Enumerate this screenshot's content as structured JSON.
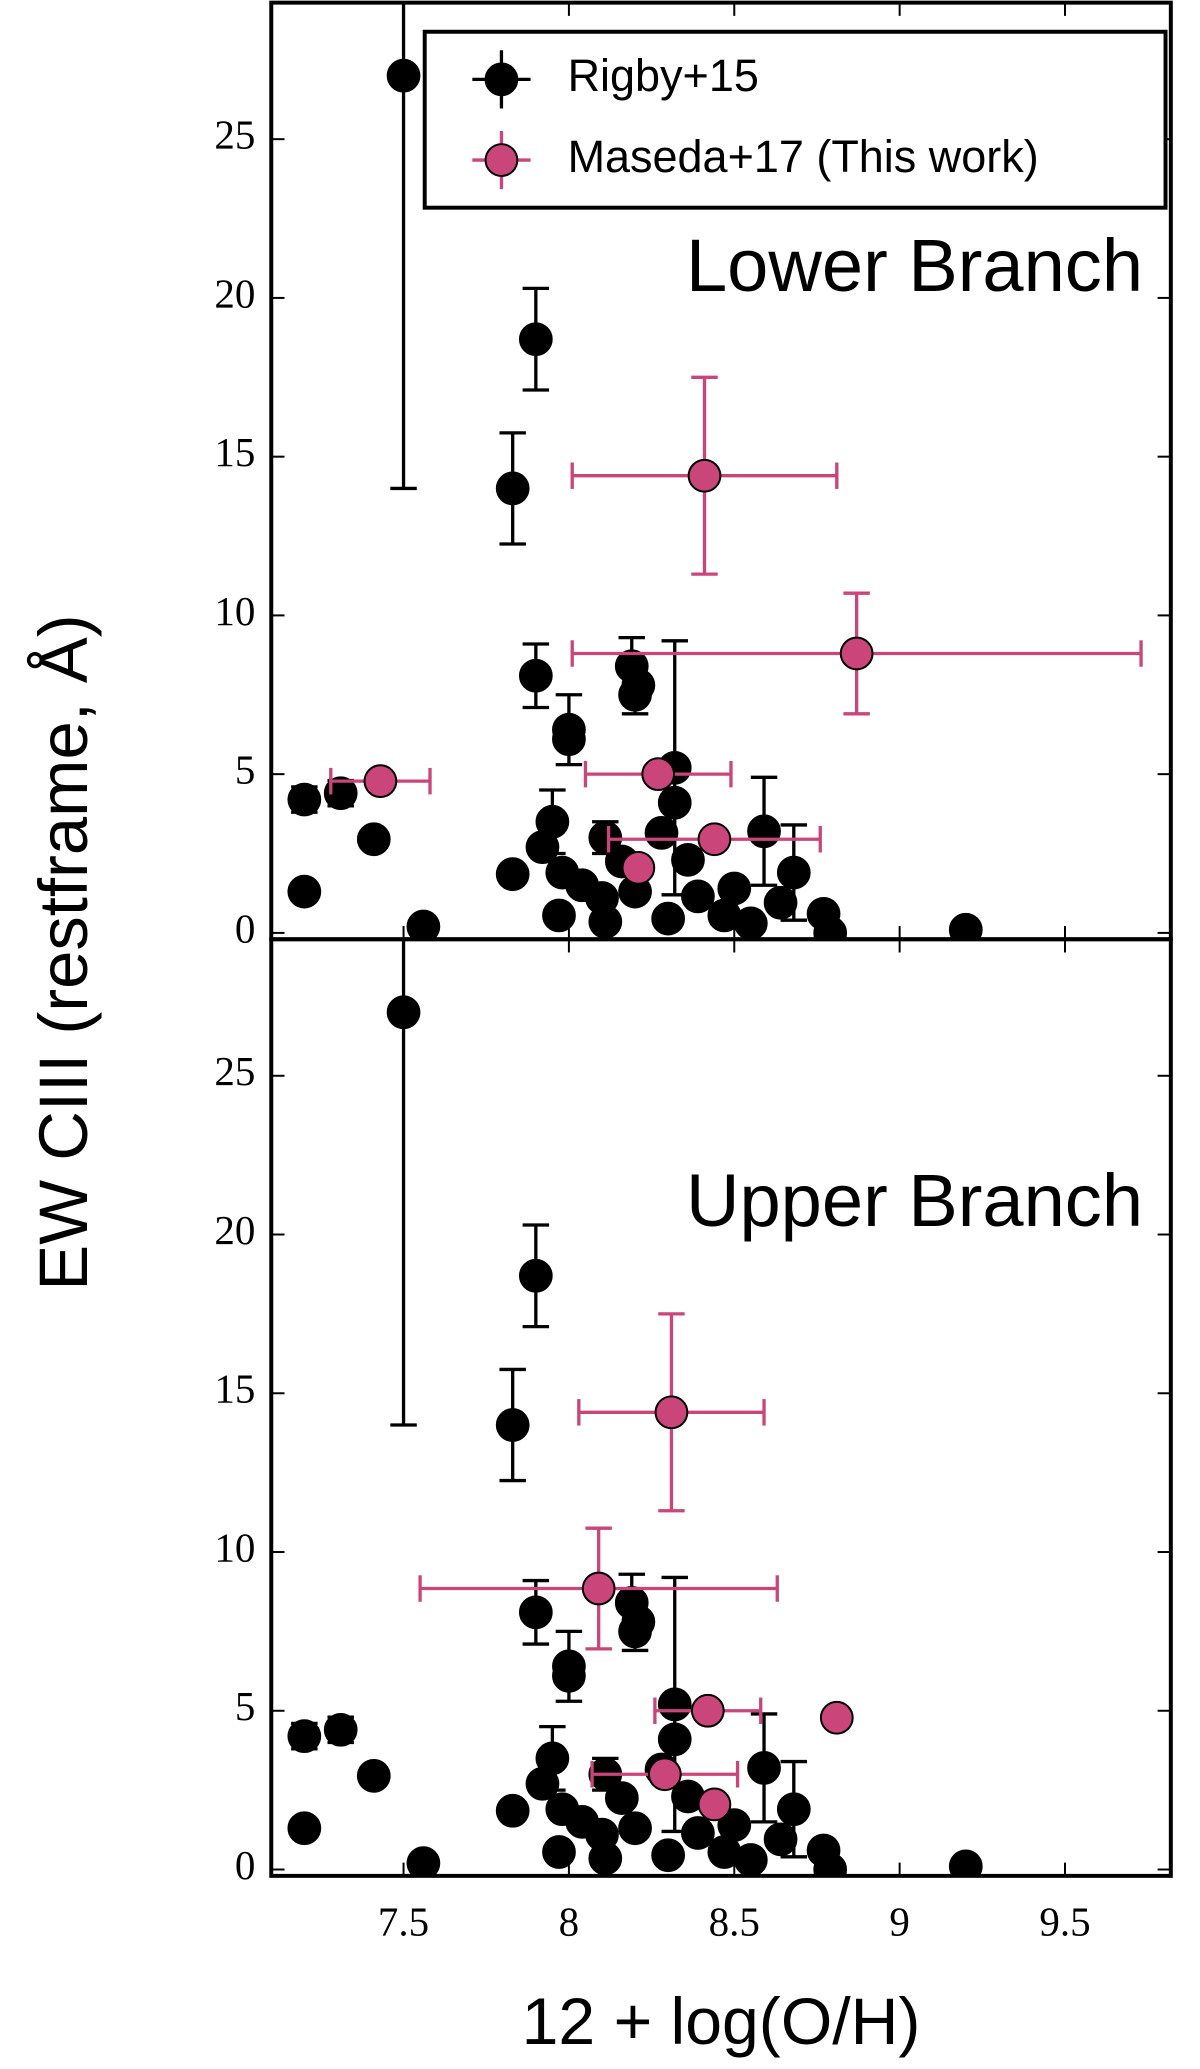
{
  "chart_data": [
    {
      "type": "scatter",
      "annotation": "Lower Branch",
      "ylabel": "EW CIII (restframe, Å)",
      "legend": "upper right",
      "xlim": [
        7.1,
        9.82
      ],
      "xticks": [
        7.5,
        8.0,
        8.5,
        9.0,
        9.5
      ],
      "xticklabels": false,
      "ylim": [
        -0.2,
        29.3
      ],
      "yticks": [
        0,
        5,
        10,
        15,
        20,
        25
      ],
      "series": [
        {
          "name": "Rigby+15",
          "color": "#000000",
          "x": [
            7.5,
            7.9,
            7.83,
            7.9,
            8.0,
            8.0,
            8.19,
            8.21,
            8.2,
            8.32,
            7.2,
            7.31,
            7.41,
            7.2,
            7.56,
            7.83,
            7.95,
            7.92,
            7.98,
            7.97,
            8.11,
            8.16,
            8.1,
            8.11,
            8.2,
            8.28,
            8.32,
            8.36,
            8.39,
            8.3,
            8.5,
            8.47,
            8.55,
            8.59,
            8.64,
            8.68,
            8.77,
            8.79,
            9.2,
            8.04
          ],
          "values": [
            27.0,
            18.7,
            14.0,
            8.1,
            6.4,
            6.1,
            8.4,
            7.8,
            7.5,
            5.2,
            4.2,
            4.4,
            2.95,
            1.3,
            0.2,
            1.85,
            3.5,
            2.7,
            1.9,
            0.55,
            3.0,
            2.25,
            1.1,
            0.35,
            1.3,
            3.15,
            4.1,
            2.3,
            1.15,
            0.45,
            1.4,
            0.55,
            0.3,
            3.2,
            0.95,
            1.9,
            0.6,
            0.0,
            0.1,
            1.5
          ],
          "yerr": [
            13,
            1.6,
            1.75,
            1.0,
            1.1,
            null,
            0.9,
            null,
            0.6,
            4.0,
            0.4,
            0.4,
            null,
            null,
            null,
            null,
            1.0,
            null,
            null,
            null,
            0.5,
            null,
            null,
            null,
            null,
            null,
            null,
            null,
            null,
            null,
            null,
            null,
            null,
            1.7,
            null,
            1.5,
            null,
            null,
            null,
            null
          ],
          "xerr": null
        },
        {
          "name": "Maseda+17 (This work)",
          "color": "#c9457a",
          "x": [
            8.41,
            8.87,
            7.43,
            8.27,
            8.44,
            8.21
          ],
          "values": [
            14.4,
            8.8,
            4.78,
            5.0,
            2.95,
            2.05
          ],
          "yerr": [
            3.1,
            1.9,
            null,
            null,
            null,
            null
          ],
          "xerr": [
            0.4,
            0.86,
            0.15,
            0.22,
            0.32,
            null
          ]
        }
      ]
    },
    {
      "type": "scatter",
      "annotation": "Upper Branch",
      "xlabel": "12 + log(O/H)",
      "xlim": [
        7.1,
        9.82
      ],
      "xticks": [
        7.5,
        8.0,
        8.5,
        9.0,
        9.5
      ],
      "xticklabels": true,
      "ylim": [
        -0.2,
        29.3
      ],
      "yticks": [
        0,
        5,
        10,
        15,
        20,
        25
      ],
      "series": [
        {
          "name": "Rigby+15",
          "color": "#000000",
          "x": [
            7.5,
            7.9,
            7.83,
            7.9,
            8.0,
            8.0,
            8.19,
            8.21,
            8.2,
            8.32,
            7.2,
            7.31,
            7.41,
            7.2,
            7.56,
            7.83,
            7.95,
            7.92,
            7.98,
            7.97,
            8.11,
            8.16,
            8.1,
            8.11,
            8.2,
            8.28,
            8.32,
            8.36,
            8.39,
            8.3,
            8.5,
            8.47,
            8.55,
            8.59,
            8.64,
            8.68,
            8.77,
            8.79,
            9.2,
            8.04
          ],
          "values": [
            27.0,
            18.7,
            14.0,
            8.1,
            6.4,
            6.1,
            8.4,
            7.8,
            7.5,
            5.2,
            4.2,
            4.4,
            2.95,
            1.3,
            0.2,
            1.85,
            3.5,
            2.7,
            1.9,
            0.55,
            3.0,
            2.25,
            1.1,
            0.35,
            1.3,
            3.15,
            4.1,
            2.3,
            1.15,
            0.45,
            1.4,
            0.55,
            0.3,
            3.2,
            0.95,
            1.9,
            0.6,
            0.0,
            0.1,
            1.5
          ],
          "yerr": [
            13,
            1.6,
            1.75,
            1.0,
            1.1,
            null,
            0.9,
            null,
            0.6,
            4.0,
            0.4,
            0.4,
            null,
            null,
            null,
            null,
            1.0,
            null,
            null,
            null,
            0.5,
            null,
            null,
            null,
            null,
            null,
            null,
            null,
            null,
            null,
            null,
            null,
            null,
            1.7,
            null,
            1.5,
            null,
            null,
            null,
            null
          ],
          "xerr": null
        },
        {
          "name": "Maseda+17 (This work)",
          "color": "#c9457a",
          "x": [
            8.31,
            8.09,
            8.81,
            8.42,
            8.29,
            8.44
          ],
          "values": [
            14.4,
            8.85,
            4.78,
            5.0,
            3.0,
            2.05
          ],
          "yerr": [
            3.1,
            1.9,
            null,
            null,
            null,
            null
          ],
          "xerr": [
            0.28,
            0.54,
            null,
            0.16,
            0.22,
            null
          ]
        }
      ]
    }
  ]
}
